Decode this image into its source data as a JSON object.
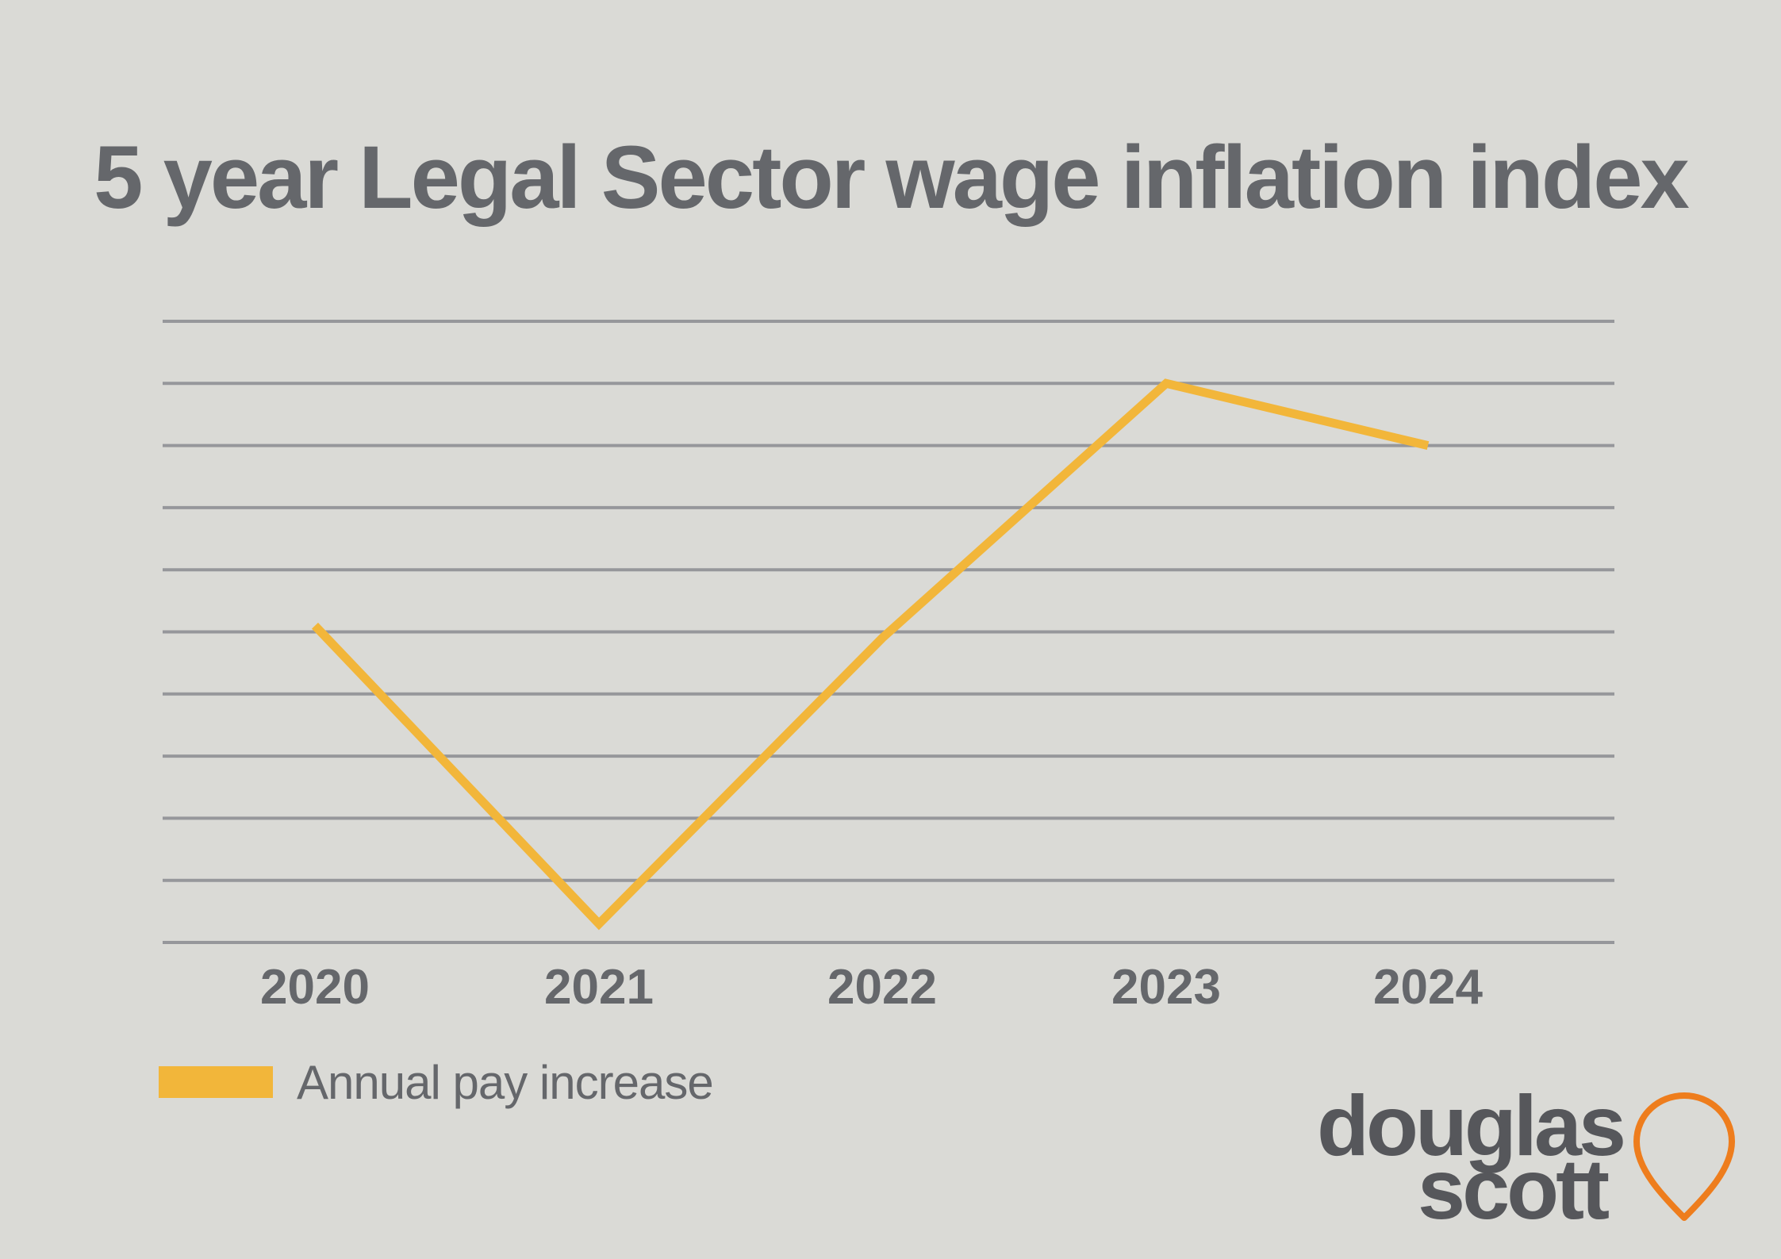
{
  "chart_data": {
    "type": "line",
    "title": "5 year Legal Sector wage inflation index",
    "categories": [
      "2020",
      "2021",
      "2022",
      "2023",
      "2024"
    ],
    "series": [
      {
        "name": "Annual pay increase",
        "values": [
          5.1,
          0.3,
          4.9,
          9.0,
          8.0
        ],
        "color": "#f2b63a"
      }
    ],
    "ylim": [
      0,
      10
    ],
    "y_gridlines": 11,
    "y_tick_labels_shown": false,
    "grid": true,
    "legend_position": "bottom-left"
  },
  "legend": {
    "label": "Annual pay increase",
    "color": "#f2b63a"
  },
  "logo": {
    "line1": "douglas",
    "line2": "scott",
    "icon": "location-pin-icon",
    "text_color": "#56575b",
    "icon_color": "#ee7d1d"
  },
  "colors": {
    "background": "#dadad6",
    "text": "#65676b",
    "grid": "#96979b",
    "line": "#f2b63a"
  }
}
